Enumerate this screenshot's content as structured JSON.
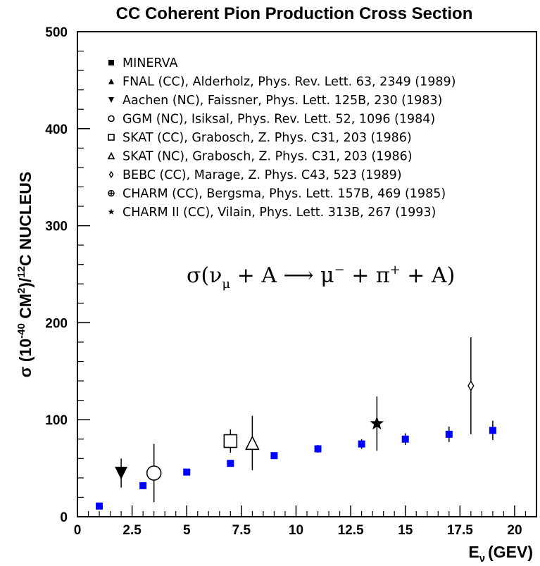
{
  "chart_data": {
    "type": "scatter",
    "title": "CC Coherent Pion Production Cross Section",
    "xlabel_main": "E",
    "xlabel_sub": "ν",
    "xlabel_unit": "(GEV)",
    "ylabel_sigma": "σ (10",
    "ylabel_exp": "-40",
    "ylabel_cm": " CM",
    "ylabel_cm_exp": "2",
    "ylabel_slash": ")/",
    "ylabel_c_exp": "12",
    "ylabel_rest": "C  NUCLEUS",
    "xlim": [
      0,
      21
    ],
    "ylim": [
      0,
      500
    ],
    "xticks": [
      0,
      2.5,
      5,
      7.5,
      10,
      12.5,
      15,
      17.5,
      20
    ],
    "xtick_labels": [
      "0",
      "2.5",
      "5",
      "7.5",
      "10",
      "12.5",
      "15",
      "17.5",
      "20"
    ],
    "yticks": [
      0,
      100,
      200,
      300,
      400,
      500
    ],
    "ytick_labels": [
      "0",
      "100",
      "200",
      "300",
      "400",
      "500"
    ],
    "annotation": {
      "parts": [
        "σ(ν",
        "μ",
        " + A ⟶ μ",
        "−",
        " + π",
        "+",
        " + A)"
      ]
    },
    "series": [
      {
        "name": "MINERVA",
        "marker": "filled-square",
        "color": "#0000ff",
        "points": [
          {
            "x": 1,
            "y": 11,
            "err": 1
          },
          {
            "x": 3,
            "y": 32,
            "err": 2
          },
          {
            "x": 5,
            "y": 46,
            "err": 2
          },
          {
            "x": 7,
            "y": 55,
            "err": 2
          },
          {
            "x": 9,
            "y": 63,
            "err": 3
          },
          {
            "x": 11,
            "y": 70,
            "err": 4
          },
          {
            "x": 13,
            "y": 75,
            "err": 5
          },
          {
            "x": 15,
            "y": 80,
            "err": 6
          },
          {
            "x": 17,
            "y": 85,
            "err": 8
          },
          {
            "x": 19,
            "y": 89,
            "err": 10
          }
        ]
      },
      {
        "name": "FNAL (CC), Alderholz, Phys. Rev. Lett. 63, 2349 (1989)",
        "marker": "filled-triangle-up",
        "color": "#000000",
        "points": []
      },
      {
        "name": "Aachen (NC), Faissner, Phys. Lett. 125B, 230 (1983)",
        "marker": "filled-triangle-down",
        "color": "#000000",
        "points": [
          {
            "x": 2,
            "y": 45,
            "err": 15
          }
        ]
      },
      {
        "name": "GGM (NC), Isiksal, Phys. Rev. Lett. 52, 1096 (1984)",
        "marker": "open-circle",
        "color": "#000000",
        "points": [
          {
            "x": 3.5,
            "y": 45,
            "err": 30
          }
        ]
      },
      {
        "name": "SKAT (CC), Grabosch, Z. Phys. C31, 203 (1986)",
        "marker": "open-square",
        "color": "#000000",
        "points": [
          {
            "x": 7,
            "y": 78,
            "err": 12
          }
        ]
      },
      {
        "name": "SKAT (NC), Grabosch, Z. Phys. C31, 203 (1986)",
        "marker": "open-triangle-up",
        "color": "#000000",
        "points": [
          {
            "x": 8,
            "y": 76,
            "err": 28
          }
        ]
      },
      {
        "name": "BEBC (CC), Marage, Z. Phys. C43, 523 (1989)",
        "marker": "open-diamond",
        "color": "#000000",
        "points": [
          {
            "x": 18,
            "y": 135,
            "err": 50
          }
        ]
      },
      {
        "name": "CHARM (CC), Bergsma, Phys. Lett. 157B, 469 (1985)",
        "marker": "open-cross",
        "color": "#000000",
        "points": []
      },
      {
        "name": "CHARM II (CC), Vilain, Phys. Lett. 313B, 267 (1993)",
        "marker": "filled-star",
        "color": "#000000",
        "points": [
          {
            "x": 13.7,
            "y": 96,
            "err": 28
          }
        ]
      }
    ]
  }
}
